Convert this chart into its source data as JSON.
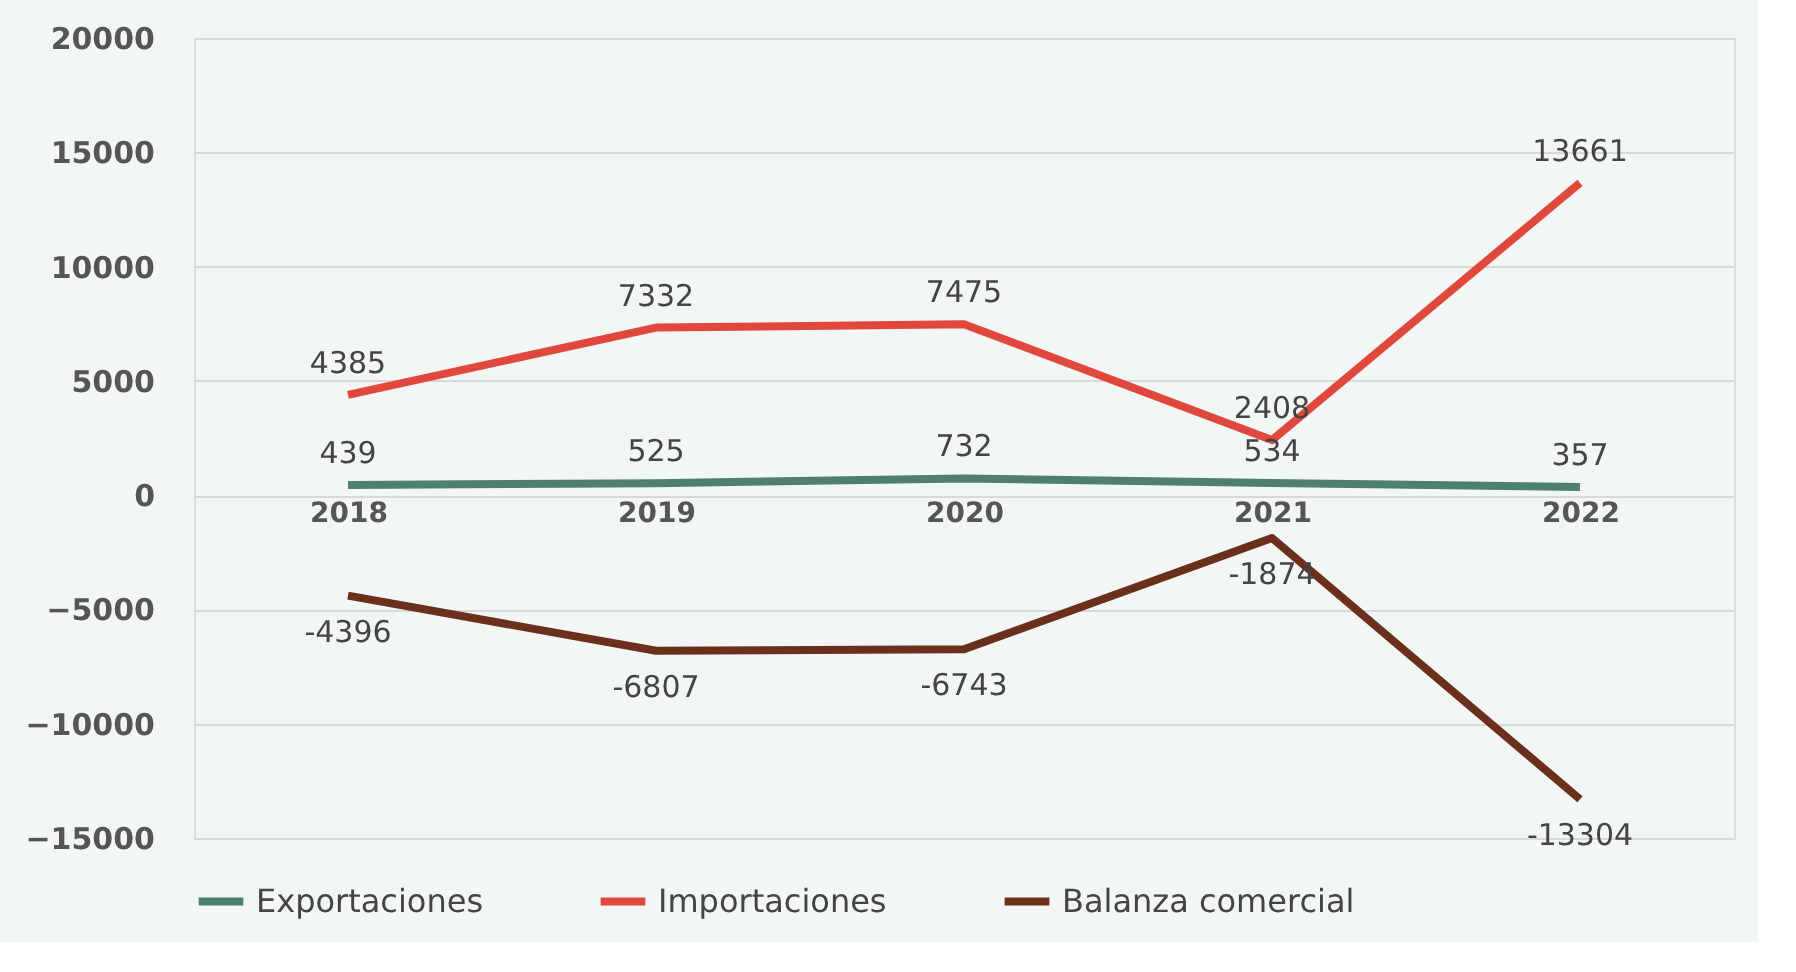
{
  "chart_data": {
    "type": "line",
    "categories": [
      "2018",
      "2019",
      "2020",
      "2021",
      "2022"
    ],
    "series": [
      {
        "name": "Exportaciones",
        "color": "#4e7f6f",
        "values": [
          439,
          525,
          732,
          534,
          357
        ]
      },
      {
        "name": "Importaciones",
        "color": "#e0483e",
        "values": [
          4385,
          7332,
          7475,
          2408,
          13661
        ]
      },
      {
        "name": "Balanza comercial",
        "color": "#6b301c",
        "values": [
          -4396,
          -6807,
          -6743,
          -1874,
          -13304
        ]
      }
    ],
    "ylim": [
      -15000,
      20000
    ],
    "yticks": [
      -15000,
      -10000,
      -5000,
      0,
      5000,
      10000,
      15000,
      20000
    ],
    "grid": "y",
    "legend": "bottom",
    "data_labels": true,
    "marker": "none",
    "line_style": "solid"
  }
}
